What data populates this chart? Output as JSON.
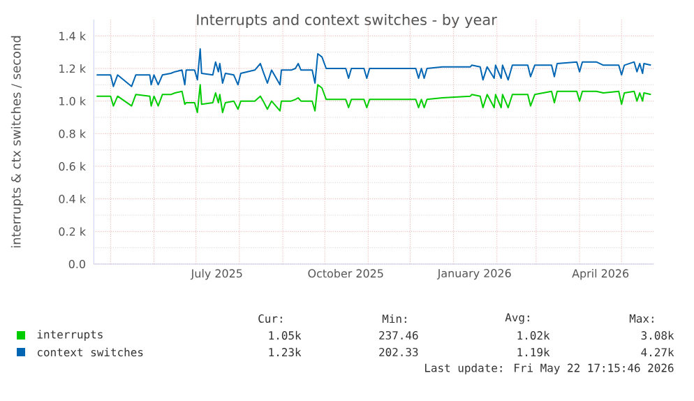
{
  "chart_data": {
    "type": "line",
    "title": "Interrupts and context switches - by year",
    "ylabel": "interrupts & ctx switches / second",
    "x": [
      "2025-04-21",
      "2025-05-01",
      "2025-05-03",
      "2025-05-06",
      "2025-05-16",
      "2025-05-19",
      "2025-05-29",
      "2025-05-30",
      "2025-06-01",
      "2025-06-04",
      "2025-06-07",
      "2025-06-13",
      "2025-06-16",
      "2025-06-21",
      "2025-06-23",
      "2025-06-24",
      "2025-06-30",
      "2025-07-02",
      "2025-07-04",
      "2025-07-05",
      "2025-07-13",
      "2025-07-15",
      "2025-07-17",
      "2025-07-18",
      "2025-07-20",
      "2025-07-22",
      "2025-07-28",
      "2025-07-31",
      "2025-08-02",
      "2025-08-12",
      "2025-08-16",
      "2025-08-18",
      "2025-08-21",
      "2025-08-24",
      "2025-08-30",
      "2025-08-31",
      "2025-09-07",
      "2025-09-10",
      "2025-09-12",
      "2025-09-14",
      "2025-09-22",
      "2025-09-24",
      "2025-09-26",
      "2025-09-29",
      "2025-10-02",
      "2025-10-16",
      "2025-10-18",
      "2025-10-20",
      "2025-10-29",
      "2025-10-31",
      "2025-11-02",
      "2025-11-18",
      "2025-12-01",
      "2025-12-05",
      "2025-12-07",
      "2025-12-09",
      "2025-12-11",
      "2025-12-13",
      "2025-12-24",
      "2026-01-13",
      "2026-01-14",
      "2026-01-20",
      "2026-01-22",
      "2026-01-25",
      "2026-01-30",
      "2026-01-31",
      "2026-02-04",
      "2026-02-05",
      "2026-02-09",
      "2026-02-12",
      "2026-02-23",
      "2026-02-25",
      "2026-02-28",
      "2026-03-12",
      "2026-03-14",
      "2026-03-16",
      "2026-03-30",
      "2026-04-01",
      "2026-04-03",
      "2026-04-13",
      "2026-04-18",
      "2026-04-29",
      "2026-05-01",
      "2026-05-03",
      "2026-05-10",
      "2026-05-12",
      "2026-05-14",
      "2026-05-16",
      "2026-05-17",
      "2026-05-22"
    ],
    "series": [
      {
        "name": "interrupts",
        "color": "#00cc00",
        "values": [
          1030,
          1030,
          970,
          1030,
          970,
          1040,
          1030,
          970,
          1030,
          970,
          1040,
          1040,
          1050,
          1060,
          980,
          990,
          990,
          930,
          1100,
          980,
          990,
          1050,
          990,
          1040,
          930,
          990,
          1000,
          950,
          1000,
          1000,
          1030,
          1000,
          950,
          1000,
          940,
          1000,
          1000,
          1010,
          1020,
          1000,
          1000,
          940,
          1100,
          1080,
          1010,
          1010,
          960,
          1010,
          1010,
          960,
          1010,
          1010,
          1010,
          1010,
          960,
          1010,
          960,
          1010,
          1020,
          1030,
          1040,
          1030,
          960,
          1040,
          960,
          1040,
          960,
          1040,
          960,
          1040,
          1040,
          970,
          1040,
          1060,
          990,
          1060,
          1060,
          1000,
          1060,
          1060,
          1050,
          1060,
          980,
          1050,
          1060,
          1000,
          1050,
          1000,
          1050,
          1040
        ]
      },
      {
        "name": "context switches",
        "color": "#0066b3",
        "values": [
          1160,
          1160,
          1090,
          1160,
          1090,
          1160,
          1160,
          1100,
          1160,
          1100,
          1160,
          1170,
          1180,
          1190,
          1100,
          1190,
          1190,
          1130,
          1320,
          1170,
          1160,
          1240,
          1180,
          1230,
          1110,
          1170,
          1160,
          1100,
          1170,
          1190,
          1230,
          1180,
          1110,
          1190,
          1100,
          1190,
          1190,
          1200,
          1230,
          1190,
          1190,
          1110,
          1290,
          1270,
          1200,
          1200,
          1140,
          1200,
          1200,
          1140,
          1200,
          1200,
          1200,
          1200,
          1140,
          1200,
          1140,
          1200,
          1210,
          1210,
          1220,
          1210,
          1130,
          1210,
          1140,
          1220,
          1140,
          1220,
          1130,
          1220,
          1220,
          1150,
          1220,
          1220,
          1150,
          1230,
          1240,
          1180,
          1240,
          1240,
          1220,
          1220,
          1160,
          1220,
          1240,
          1180,
          1230,
          1170,
          1230,
          1220
        ]
      }
    ],
    "xlim": [
      "2025-04-19",
      "2026-05-24"
    ],
    "xticks": [
      {
        "value": "2025-05-01",
        "label": null
      },
      {
        "value": "2025-06-01",
        "label": null
      },
      {
        "value": "2025-07-01",
        "label": null
      },
      {
        "value": "2025-08-01",
        "label": null
      },
      {
        "value": "2025-09-01",
        "label": null
      },
      {
        "value": "2025-10-01",
        "label": null
      },
      {
        "value": "2025-11-01",
        "label": null
      },
      {
        "value": "2025-12-01",
        "label": null
      },
      {
        "value": "2026-01-01",
        "label": null
      },
      {
        "value": "2026-02-01",
        "label": null
      },
      {
        "value": "2026-03-01",
        "label": null
      },
      {
        "value": "2026-04-01",
        "label": null
      },
      {
        "value": "2026-05-01",
        "label": null
      },
      {
        "value": "2025-07-16",
        "label": "July 2025"
      },
      {
        "value": "2025-10-16",
        "label": "October 2025"
      },
      {
        "value": "2026-01-16",
        "label": "January 2026"
      },
      {
        "value": "2026-04-16",
        "label": "April 2026"
      }
    ],
    "ylim": [
      0,
      1500
    ],
    "yticks": [
      {
        "value": 0,
        "label": "0.0"
      },
      {
        "value": 200,
        "label": "0.2 k"
      },
      {
        "value": 400,
        "label": "0.4 k"
      },
      {
        "value": 600,
        "label": "0.6 k"
      },
      {
        "value": 800,
        "label": "0.8 k"
      },
      {
        "value": 1000,
        "label": "1.0 k"
      },
      {
        "value": 1200,
        "label": "1.2 k"
      },
      {
        "value": 1400,
        "label": "1.4 k"
      }
    ],
    "grid": true,
    "legend": "bottom",
    "annotations": [
      "Cur:",
      "Min:",
      "Avg:",
      "Max:",
      "1.05k",
      "237.46",
      "1.02k",
      "3.08k",
      "1.23k",
      "202.33",
      "1.19k",
      "4.27k",
      "Last update: Fri May 22 17:15:46 2026"
    ]
  }
}
